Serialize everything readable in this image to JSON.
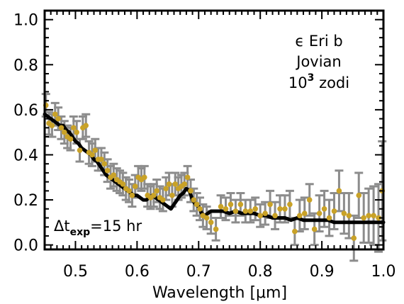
{
  "chart_data": {
    "type": "scatter",
    "xlabel": "Wavelength [μm]",
    "ylabel": "",
    "xlim": [
      0.45,
      1.0
    ],
    "ylim": [
      -0.02,
      1.04
    ],
    "xticks": [
      0.5,
      0.6,
      0.7,
      0.8,
      0.9,
      1.0
    ],
    "xtick_labels": [
      "0.5",
      "0.6",
      "0.7",
      "0.8",
      "0.9",
      "1.0"
    ],
    "yticks": [
      0.0,
      0.2,
      0.4,
      0.6,
      0.8,
      1.0
    ],
    "ytick_labels": [
      "0.0",
      "0.2",
      "0.4",
      "0.6",
      "0.8",
      "1.0"
    ],
    "annotations": {
      "planet": "ϵ Eri b",
      "planet_type": "Jovian",
      "zodi_base": "10",
      "zodi_exp": "3",
      "zodi_unit": "zodi",
      "exposure_prefix": "Δt",
      "exposure_sub": "exp",
      "exposure_value": "=15 hr"
    },
    "model_color": "#000000",
    "point_color": "#c9a227",
    "errorbar_color": "#8c8c8c",
    "model": {
      "x": [
        0.45,
        0.455,
        0.46,
        0.465,
        0.47,
        0.475,
        0.48,
        0.485,
        0.49,
        0.495,
        0.5,
        0.505,
        0.51,
        0.515,
        0.52,
        0.525,
        0.53,
        0.535,
        0.54,
        0.545,
        0.55,
        0.555,
        0.56,
        0.565,
        0.57,
        0.575,
        0.58,
        0.585,
        0.59,
        0.595,
        0.6,
        0.605,
        0.61,
        0.615,
        0.62,
        0.625,
        0.63,
        0.635,
        0.64,
        0.645,
        0.65,
        0.655,
        0.66,
        0.665,
        0.67,
        0.675,
        0.68,
        0.685,
        0.69,
        0.695,
        0.7,
        0.705,
        0.71,
        0.715,
        0.72,
        0.73,
        0.74,
        0.75,
        0.76,
        0.77,
        0.78,
        0.79,
        0.8,
        0.81,
        0.82,
        0.83,
        0.84,
        0.85,
        0.86,
        0.87,
        0.88,
        0.89,
        0.9,
        0.91,
        0.92,
        0.93,
        0.94,
        0.95,
        0.96,
        0.97,
        0.98,
        0.99,
        1.0
      ],
      "y": [
        0.58,
        0.57,
        0.56,
        0.55,
        0.54,
        0.53,
        0.53,
        0.51,
        0.5,
        0.48,
        0.46,
        0.45,
        0.43,
        0.42,
        0.41,
        0.4,
        0.38,
        0.37,
        0.35,
        0.33,
        0.31,
        0.3,
        0.29,
        0.28,
        0.27,
        0.26,
        0.25,
        0.24,
        0.23,
        0.22,
        0.22,
        0.21,
        0.2,
        0.2,
        0.21,
        0.22,
        0.21,
        0.2,
        0.19,
        0.18,
        0.17,
        0.16,
        0.18,
        0.2,
        0.22,
        0.23,
        0.25,
        0.24,
        0.2,
        0.18,
        0.17,
        0.14,
        0.13,
        0.14,
        0.15,
        0.15,
        0.15,
        0.14,
        0.15,
        0.14,
        0.14,
        0.14,
        0.13,
        0.13,
        0.12,
        0.12,
        0.12,
        0.11,
        0.12,
        0.11,
        0.11,
        0.11,
        0.11,
        0.11,
        0.1,
        0.1,
        0.1,
        0.1,
        0.1,
        0.1,
        0.1,
        0.1,
        0.1
      ]
    },
    "points": {
      "x": [
        0.452,
        0.457,
        0.462,
        0.467,
        0.472,
        0.477,
        0.482,
        0.487,
        0.492,
        0.497,
        0.502,
        0.507,
        0.512,
        0.517,
        0.522,
        0.527,
        0.532,
        0.537,
        0.542,
        0.547,
        0.552,
        0.557,
        0.562,
        0.567,
        0.572,
        0.577,
        0.582,
        0.587,
        0.592,
        0.597,
        0.602,
        0.607,
        0.612,
        0.617,
        0.622,
        0.627,
        0.632,
        0.637,
        0.642,
        0.647,
        0.652,
        0.657,
        0.662,
        0.667,
        0.672,
        0.677,
        0.682,
        0.687,
        0.692,
        0.697,
        0.702,
        0.707,
        0.713,
        0.72,
        0.728,
        0.736,
        0.744,
        0.752,
        0.76,
        0.768,
        0.776,
        0.784,
        0.792,
        0.8,
        0.808,
        0.816,
        0.824,
        0.832,
        0.84,
        0.848,
        0.856,
        0.864,
        0.872,
        0.88,
        0.888,
        0.896,
        0.904,
        0.912,
        0.92,
        0.928,
        0.936,
        0.944,
        0.952,
        0.96,
        0.968,
        0.976,
        0.984,
        0.992,
        0.998
      ],
      "y": [
        0.62,
        0.54,
        0.53,
        0.58,
        0.56,
        0.52,
        0.5,
        0.48,
        0.47,
        0.52,
        0.5,
        0.42,
        0.52,
        0.53,
        0.41,
        0.4,
        0.42,
        0.38,
        0.38,
        0.36,
        0.33,
        0.3,
        0.31,
        0.29,
        0.28,
        0.27,
        0.25,
        0.24,
        0.22,
        0.26,
        0.3,
        0.29,
        0.3,
        0.22,
        0.21,
        0.22,
        0.24,
        0.21,
        0.2,
        0.25,
        0.27,
        0.22,
        0.27,
        0.25,
        0.26,
        0.27,
        0.3,
        0.24,
        0.2,
        0.18,
        0.16,
        0.13,
        0.12,
        0.1,
        0.07,
        0.17,
        0.16,
        0.18,
        0.15,
        0.18,
        0.15,
        0.15,
        0.16,
        0.13,
        0.14,
        0.18,
        0.13,
        0.16,
        0.16,
        0.18,
        0.06,
        0.13,
        0.14,
        0.2,
        0.07,
        0.14,
        0.16,
        0.12,
        0.15,
        0.24,
        0.14,
        0.13,
        0.03,
        0.22,
        0.12,
        0.13,
        0.13,
        0.12,
        0.24
      ],
      "err": [
        0.05,
        0.05,
        0.05,
        0.05,
        0.05,
        0.05,
        0.05,
        0.05,
        0.05,
        0.05,
        0.05,
        0.05,
        0.05,
        0.05,
        0.05,
        0.05,
        0.05,
        0.05,
        0.05,
        0.05,
        0.05,
        0.05,
        0.05,
        0.05,
        0.05,
        0.05,
        0.05,
        0.05,
        0.05,
        0.05,
        0.05,
        0.05,
        0.05,
        0.05,
        0.05,
        0.05,
        0.05,
        0.05,
        0.05,
        0.05,
        0.05,
        0.05,
        0.05,
        0.05,
        0.05,
        0.05,
        0.05,
        0.05,
        0.05,
        0.05,
        0.05,
        0.05,
        0.05,
        0.05,
        0.05,
        0.05,
        0.05,
        0.05,
        0.05,
        0.05,
        0.05,
        0.05,
        0.05,
        0.05,
        0.05,
        0.06,
        0.06,
        0.06,
        0.06,
        0.06,
        0.06,
        0.07,
        0.07,
        0.07,
        0.07,
        0.08,
        0.08,
        0.08,
        0.08,
        0.09,
        0.09,
        0.1,
        0.1,
        0.1,
        0.11,
        0.12,
        0.13,
        0.15,
        0.22
      ]
    }
  }
}
